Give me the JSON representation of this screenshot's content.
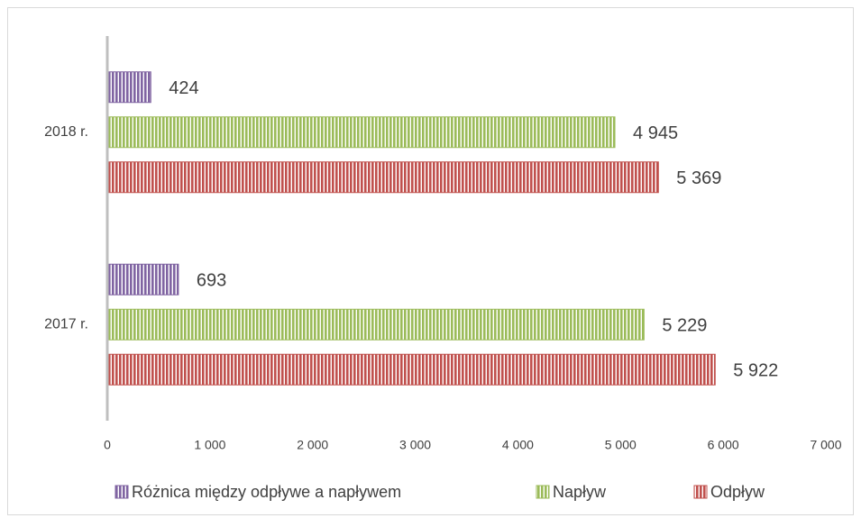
{
  "chart_data": {
    "type": "bar",
    "orientation": "horizontal",
    "categories": [
      "2018 r.",
      "2017 r."
    ],
    "series": [
      {
        "name": "Różnica między odpływe a napływem",
        "color": "#8064a2",
        "values": [
          424,
          693
        ],
        "value_labels": [
          "424",
          "693"
        ]
      },
      {
        "name": "Napływ",
        "color": "#9bbb59",
        "values": [
          4945,
          5229
        ],
        "value_labels": [
          "4 945",
          "5 229"
        ]
      },
      {
        "name": "Odpływ",
        "color": "#c0504d",
        "values": [
          5369,
          5922
        ],
        "value_labels": [
          "5 369",
          "5 922"
        ]
      }
    ],
    "xlim": [
      0,
      7000
    ],
    "xticks": [
      0,
      {
        "value": 1000,
        "label": "1 000"
      },
      {
        "value": 2000,
        "label": "2 000"
      },
      {
        "value": 3000,
        "label": "3 000"
      },
      {
        "value": 4000,
        "label": "4 000"
      },
      {
        "value": 5000,
        "label": "5 000"
      },
      {
        "value": 6000,
        "label": "6 000"
      },
      {
        "value": 7000,
        "label": "7 000"
      }
    ],
    "grid": false,
    "legend": "bottom"
  }
}
